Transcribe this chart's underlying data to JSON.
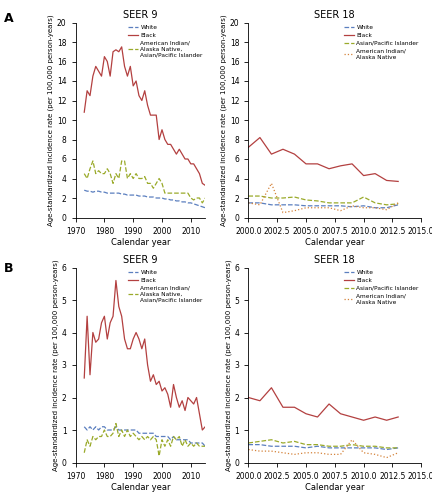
{
  "panel_A_seer9": {
    "title": "SEER 9",
    "xlim": [
      1970,
      2015
    ],
    "ylim": [
      0,
      20
    ],
    "yticks": [
      0,
      2,
      4,
      6,
      8,
      10,
      12,
      14,
      16,
      18,
      20
    ],
    "ylabel": "Age-standardized incidence rate (per 100,000 person-years)",
    "xlabel": "Calendar year",
    "white": {
      "years": [
        1973,
        1974,
        1975,
        1976,
        1977,
        1978,
        1979,
        1980,
        1981,
        1982,
        1983,
        1984,
        1985,
        1986,
        1987,
        1988,
        1989,
        1990,
        1991,
        1992,
        1993,
        1994,
        1995,
        1996,
        1997,
        1998,
        1999,
        2000,
        2001,
        2002,
        2003,
        2004,
        2005,
        2006,
        2007,
        2008,
        2009,
        2010,
        2011,
        2012,
        2013,
        2014,
        2015
      ],
      "values": [
        2.8,
        2.7,
        2.7,
        2.6,
        2.7,
        2.7,
        2.6,
        2.6,
        2.5,
        2.5,
        2.5,
        2.5,
        2.5,
        2.4,
        2.4,
        2.3,
        2.3,
        2.3,
        2.3,
        2.2,
        2.2,
        2.2,
        2.1,
        2.1,
        2.1,
        2.0,
        2.0,
        2.0,
        1.9,
        1.9,
        1.8,
        1.8,
        1.7,
        1.7,
        1.6,
        1.6,
        1.5,
        1.5,
        1.4,
        1.3,
        1.2,
        1.1,
        1.0
      ],
      "color": "#5b7fbf",
      "linestyle": "--"
    },
    "black": {
      "years": [
        1973,
        1974,
        1975,
        1976,
        1977,
        1978,
        1979,
        1980,
        1981,
        1982,
        1983,
        1984,
        1985,
        1986,
        1987,
        1988,
        1989,
        1990,
        1991,
        1992,
        1993,
        1994,
        1995,
        1996,
        1997,
        1998,
        1999,
        2000,
        2001,
        2002,
        2003,
        2004,
        2005,
        2006,
        2007,
        2008,
        2009,
        2010,
        2011,
        2012,
        2013,
        2014,
        2015
      ],
      "values": [
        10.8,
        13.0,
        12.5,
        14.5,
        15.5,
        15.0,
        14.5,
        16.5,
        16.0,
        14.5,
        17.0,
        17.2,
        17.0,
        17.5,
        15.5,
        14.5,
        15.5,
        13.5,
        14.0,
        12.5,
        12.0,
        13.0,
        11.5,
        10.5,
        10.5,
        10.5,
        8.0,
        9.0,
        8.0,
        7.5,
        7.5,
        7.0,
        6.5,
        7.0,
        6.5,
        6.0,
        6.0,
        5.5,
        5.5,
        5.0,
        4.5,
        3.5,
        3.3
      ],
      "color": "#b34040",
      "linestyle": "-"
    },
    "other": {
      "years": [
        1973,
        1974,
        1975,
        1976,
        1977,
        1978,
        1979,
        1980,
        1981,
        1982,
        1983,
        1984,
        1985,
        1986,
        1987,
        1988,
        1989,
        1990,
        1991,
        1992,
        1993,
        1994,
        1995,
        1996,
        1997,
        1998,
        1999,
        2000,
        2001,
        2002,
        2003,
        2004,
        2005,
        2006,
        2007,
        2008,
        2009,
        2010,
        2011,
        2012,
        2013,
        2014,
        2015
      ],
      "values": [
        4.5,
        4.0,
        5.0,
        5.8,
        4.5,
        4.8,
        4.5,
        4.5,
        5.0,
        4.5,
        3.5,
        4.5,
        4.0,
        5.8,
        5.8,
        4.0,
        4.5,
        4.0,
        4.5,
        4.0,
        4.0,
        4.2,
        3.5,
        3.5,
        3.0,
        3.5,
        4.0,
        3.5,
        2.5,
        2.5,
        2.5,
        2.5,
        2.5,
        2.5,
        2.5,
        2.5,
        2.5,
        2.0,
        1.8,
        2.0,
        2.0,
        1.5,
        2.0
      ],
      "color": "#9aaa2a",
      "linestyle": "--",
      "label": "American Indian/\nAlaska Native,\nAsian/Pacific Islander"
    },
    "legend_labels": [
      "White",
      "Black",
      "American Indian/\nAlaska Native,\nAsian/Pacific Islander"
    ]
  },
  "panel_A_seer18": {
    "title": "SEER 18",
    "xlim": [
      2000,
      2015
    ],
    "ylim": [
      0,
      20
    ],
    "yticks": [
      0,
      2,
      4,
      6,
      8,
      10,
      12,
      14,
      16,
      18,
      20
    ],
    "ylabel": "Age-standardized incidence rate (per 100,000 person-years)",
    "xlabel": "Calendar year",
    "white": {
      "years": [
        2000,
        2001,
        2002,
        2003,
        2004,
        2005,
        2006,
        2007,
        2008,
        2009,
        2010,
        2011,
        2012,
        2013
      ],
      "values": [
        1.5,
        1.5,
        1.3,
        1.3,
        1.3,
        1.2,
        1.2,
        1.2,
        1.2,
        1.1,
        1.2,
        1.0,
        1.0,
        1.3
      ],
      "color": "#5b7fbf",
      "linestyle": "--"
    },
    "black": {
      "years": [
        2000,
        2001,
        2002,
        2003,
        2004,
        2005,
        2006,
        2007,
        2008,
        2009,
        2010,
        2011,
        2012,
        2013
      ],
      "values": [
        7.2,
        8.2,
        6.5,
        7.0,
        6.5,
        5.5,
        5.5,
        5.0,
        5.3,
        5.5,
        4.3,
        4.5,
        3.8,
        3.7
      ],
      "color": "#b34040",
      "linestyle": "-"
    },
    "asian": {
      "years": [
        2000,
        2001,
        2002,
        2003,
        2004,
        2005,
        2006,
        2007,
        2008,
        2009,
        2010,
        2011,
        2012,
        2013
      ],
      "values": [
        2.2,
        2.2,
        2.0,
        2.0,
        2.1,
        1.8,
        1.7,
        1.5,
        1.5,
        1.5,
        2.1,
        1.5,
        1.3,
        1.4
      ],
      "color": "#9aaa2a",
      "linestyle": "--",
      "label": "Asian/Pacific Islander"
    },
    "native": {
      "years": [
        2000,
        2001,
        2002,
        2003,
        2004,
        2005,
        2006,
        2007,
        2008,
        2009,
        2010,
        2011,
        2012,
        2013
      ],
      "values": [
        1.5,
        1.3,
        3.5,
        0.5,
        0.7,
        1.0,
        1.0,
        1.0,
        0.7,
        1.2,
        1.0,
        1.0,
        0.8,
        1.5
      ],
      "color": "#d4823a",
      "linestyle": ":",
      "label": "American Indian/\nAlaska Native"
    },
    "legend_labels": [
      "White",
      "Black",
      "Asian/Pacific Islander",
      "American Indian/\nAlaska Native"
    ]
  },
  "panel_B_seer9": {
    "title": "SEER 9",
    "xlim": [
      1970,
      2015
    ],
    "ylim": [
      0,
      6
    ],
    "yticks": [
      0,
      1,
      2,
      3,
      4,
      5,
      6
    ],
    "ylabel": "Age-standardized incidence rate (per 100,000 person-years)",
    "xlabel": "Calendar year",
    "white": {
      "years": [
        1973,
        1974,
        1975,
        1976,
        1977,
        1978,
        1979,
        1980,
        1981,
        1982,
        1983,
        1984,
        1985,
        1986,
        1987,
        1988,
        1989,
        1990,
        1991,
        1992,
        1993,
        1994,
        1995,
        1996,
        1997,
        1998,
        1999,
        2000,
        2001,
        2002,
        2003,
        2004,
        2005,
        2006,
        2007,
        2008,
        2009,
        2010,
        2011,
        2012,
        2013,
        2014,
        2015
      ],
      "values": [
        1.1,
        1.0,
        1.1,
        1.0,
        1.1,
        1.0,
        1.1,
        1.1,
        1.0,
        1.0,
        1.0,
        1.1,
        1.0,
        1.0,
        1.0,
        1.0,
        1.0,
        1.0,
        1.0,
        0.9,
        0.9,
        0.9,
        0.9,
        0.9,
        0.9,
        0.8,
        0.8,
        0.8,
        0.8,
        0.8,
        0.7,
        0.8,
        0.7,
        0.7,
        0.7,
        0.7,
        0.7,
        0.6,
        0.6,
        0.6,
        0.6,
        0.6,
        0.5
      ],
      "color": "#5b7fbf",
      "linestyle": "--"
    },
    "black": {
      "years": [
        1973,
        1974,
        1975,
        1976,
        1977,
        1978,
        1979,
        1980,
        1981,
        1982,
        1983,
        1984,
        1985,
        1986,
        1987,
        1988,
        1989,
        1990,
        1991,
        1992,
        1993,
        1994,
        1995,
        1996,
        1997,
        1998,
        1999,
        2000,
        2001,
        2002,
        2003,
        2004,
        2005,
        2006,
        2007,
        2008,
        2009,
        2010,
        2011,
        2012,
        2013,
        2014,
        2015
      ],
      "values": [
        2.6,
        4.5,
        2.7,
        4.0,
        3.7,
        3.8,
        4.3,
        4.5,
        3.8,
        4.3,
        4.5,
        5.6,
        4.8,
        4.5,
        3.8,
        3.5,
        3.5,
        3.8,
        4.0,
        3.8,
        3.5,
        3.8,
        3.0,
        2.5,
        2.7,
        2.4,
        2.5,
        2.2,
        2.3,
        2.1,
        1.7,
        2.4,
        2.0,
        1.7,
        1.9,
        1.6,
        2.0,
        1.9,
        1.8,
        2.0,
        1.5,
        1.0,
        1.1
      ],
      "color": "#b34040",
      "linestyle": "-"
    },
    "other": {
      "years": [
        1973,
        1974,
        1975,
        1976,
        1977,
        1978,
        1979,
        1980,
        1981,
        1982,
        1983,
        1984,
        1985,
        1986,
        1987,
        1988,
        1989,
        1990,
        1991,
        1992,
        1993,
        1994,
        1995,
        1996,
        1997,
        1998,
        1999,
        2000,
        2001,
        2002,
        2003,
        2004,
        2005,
        2006,
        2007,
        2008,
        2009,
        2010,
        2011,
        2012,
        2013,
        2014,
        2015
      ],
      "values": [
        0.3,
        0.7,
        0.5,
        0.8,
        0.7,
        0.8,
        0.8,
        1.0,
        0.8,
        0.8,
        0.9,
        1.2,
        0.8,
        1.0,
        0.8,
        1.0,
        0.8,
        0.9,
        0.8,
        0.7,
        0.8,
        0.7,
        0.8,
        0.7,
        0.8,
        0.7,
        0.2,
        0.7,
        0.5,
        0.7,
        0.5,
        0.8,
        0.7,
        0.8,
        0.5,
        0.7,
        0.5,
        0.6,
        0.5,
        0.6,
        0.5,
        0.5,
        0.5
      ],
      "color": "#9aaa2a",
      "linestyle": "--",
      "label": "American Indian/\nAlaska Native,\nAsian/Pacific Islander"
    },
    "legend_labels": [
      "White",
      "Black",
      "American Indian/\nAlaska Native,\nAsian/Pacific Islander"
    ]
  },
  "panel_B_seer18": {
    "title": "SEER 18",
    "xlim": [
      2000,
      2015
    ],
    "ylim": [
      0,
      6
    ],
    "yticks": [
      0,
      1,
      2,
      3,
      4,
      5,
      6
    ],
    "ylabel": "Age-standardized incidence rate (per 100,000 person-years)",
    "xlabel": "Calendar year",
    "white": {
      "years": [
        2000,
        2001,
        2002,
        2003,
        2004,
        2005,
        2006,
        2007,
        2008,
        2009,
        2010,
        2011,
        2012,
        2013
      ],
      "values": [
        0.55,
        0.55,
        0.5,
        0.5,
        0.5,
        0.45,
        0.5,
        0.45,
        0.45,
        0.45,
        0.45,
        0.45,
        0.4,
        0.45
      ],
      "color": "#5b7fbf",
      "linestyle": "--"
    },
    "black": {
      "years": [
        2000,
        2001,
        2002,
        2003,
        2004,
        2005,
        2006,
        2007,
        2008,
        2009,
        2010,
        2011,
        2012,
        2013
      ],
      "values": [
        2.0,
        1.9,
        2.3,
        1.7,
        1.7,
        1.5,
        1.4,
        1.8,
        1.5,
        1.4,
        1.3,
        1.4,
        1.3,
        1.4
      ],
      "color": "#b34040",
      "linestyle": "-"
    },
    "asian": {
      "years": [
        2000,
        2001,
        2002,
        2003,
        2004,
        2005,
        2006,
        2007,
        2008,
        2009,
        2010,
        2011,
        2012,
        2013
      ],
      "values": [
        0.6,
        0.65,
        0.7,
        0.6,
        0.65,
        0.55,
        0.55,
        0.5,
        0.5,
        0.55,
        0.5,
        0.5,
        0.45,
        0.45
      ],
      "color": "#9aaa2a",
      "linestyle": "--",
      "label": "Asian/Pacific Islander"
    },
    "native": {
      "years": [
        2000,
        2001,
        2002,
        2003,
        2004,
        2005,
        2006,
        2007,
        2008,
        2009,
        2010,
        2011,
        2012,
        2013
      ],
      "values": [
        0.4,
        0.35,
        0.35,
        0.3,
        0.25,
        0.3,
        0.3,
        0.25,
        0.25,
        0.7,
        0.3,
        0.25,
        0.15,
        0.3
      ],
      "color": "#d4823a",
      "linestyle": ":",
      "label": "American Indian/\nAlaska Native"
    },
    "legend_labels": [
      "White",
      "Black",
      "Asian/Pacific Islander",
      "American Indian/\nAlaska Native"
    ]
  }
}
